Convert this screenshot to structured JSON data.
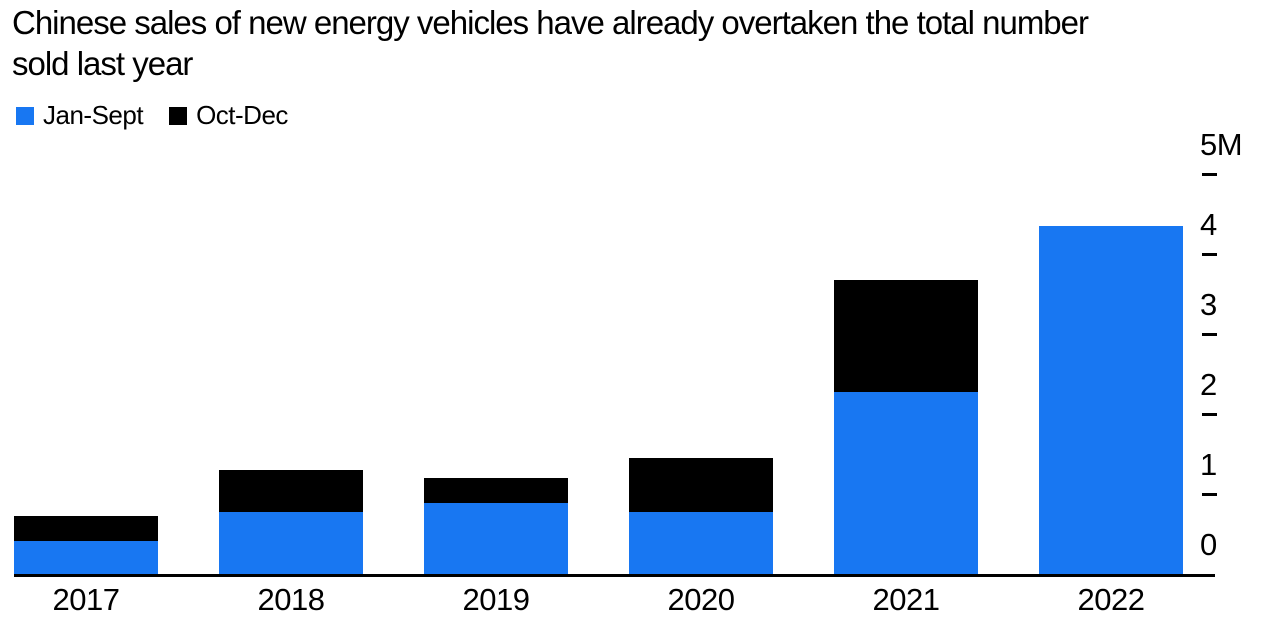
{
  "title_lines": [
    "Chinese sales of new energy vehicles have already overtaken the total number",
    "sold last year"
  ],
  "legend": {
    "items": [
      {
        "label": "Jan-Sept",
        "color": "#1877F2"
      },
      {
        "label": "Oct-Dec",
        "color": "#000000"
      }
    ]
  },
  "colors": {
    "accent_blue": "#1877F2",
    "series_black": "#000000",
    "background": "#FFFFFF",
    "axis": "#000000"
  },
  "chart_data": {
    "type": "bar",
    "stacked": true,
    "title": "Chinese sales of new energy vehicles have already overtaken the total number sold last year",
    "categories": [
      "2017",
      "2018",
      "2019",
      "2020",
      "2021",
      "2022"
    ],
    "series": [
      {
        "name": "Jan-Sept",
        "color": "#1877F2",
        "values": [
          0.41,
          0.78,
          0.89,
          0.78,
          2.28,
          4.35
        ]
      },
      {
        "name": "Oct-Dec",
        "color": "#000000",
        "values": [
          0.31,
          0.52,
          0.31,
          0.67,
          1.4,
          0
        ]
      }
    ],
    "totals": [
      0.72,
      1.3,
      1.2,
      1.45,
      3.68,
      4.35
    ],
    "xlabel": "",
    "ylabel": "",
    "ylim": [
      0,
      5
    ],
    "yticks": [
      {
        "value": 0,
        "label": "0"
      },
      {
        "value": 1,
        "label": "1"
      },
      {
        "value": 2,
        "label": "2"
      },
      {
        "value": 3,
        "label": "3"
      },
      {
        "value": 4,
        "label": "4"
      },
      {
        "value": 5,
        "label": "5M"
      }
    ],
    "axis_side": "right",
    "grid": false,
    "legend_position": "top-left"
  }
}
